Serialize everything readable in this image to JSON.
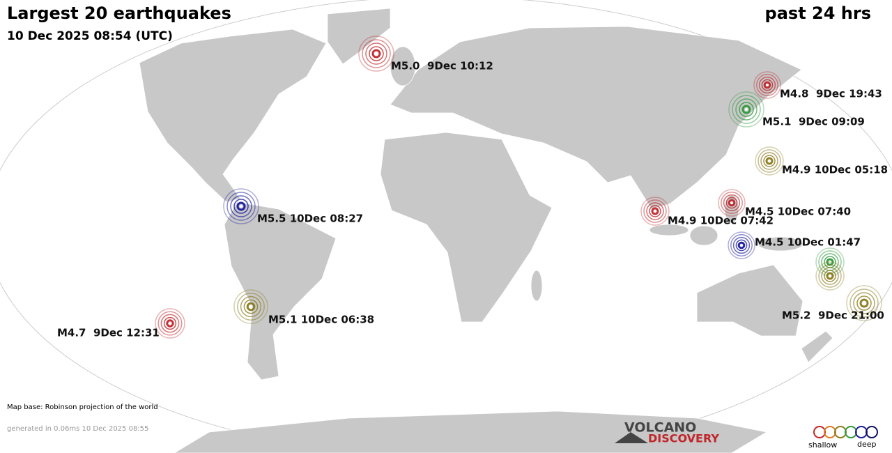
{
  "header": {
    "title": "Largest 20 earthquakes",
    "subtitle": "10 Dec 2025 08:54 (UTC)",
    "period": "past 24 hrs"
  },
  "quakes": [
    {
      "label": "M5.0  9Dec 10:12",
      "color": "#c0262b"
    },
    {
      "label": "M4.8  9Dec 19:43",
      "color": "#c0262b"
    },
    {
      "label": "M5.1  9Dec 09:09",
      "color": "#2e9a3a"
    },
    {
      "label": "M4.9 10Dec 05:18",
      "color": "#8a7a1c"
    },
    {
      "label": "M5.5 10Dec 08:27",
      "color": "#1a1aa0"
    },
    {
      "label": "M4.5 10Dec 07:40",
      "color": "#c0262b"
    },
    {
      "label": "M4.9 10Dec 07:42",
      "color": "#c0262b"
    },
    {
      "label": "M4.5 10Dec 01:47",
      "color": "#1a1aa0"
    },
    {
      "color": "#2e9a3a"
    },
    {
      "color": "#8a7a1c"
    },
    {
      "label": "M5.1 10Dec 06:38",
      "color": "#8a7a1c"
    },
    {
      "label": "M5.2  9Dec 21:00",
      "color": "#8a7a1c"
    },
    {
      "label": "M4.7  9Dec 12:31",
      "color": "#c0262b"
    }
  ],
  "footer": {
    "map_base": "Map base: Robinson projection of the world",
    "generated": "generated in 0.06ms 10 Dec 2025 08:55"
  },
  "logo": {
    "top": "VOLCANO",
    "bottom": "DISCOVERY"
  },
  "legend": {
    "shallow": "shallow",
    "deep": "deep"
  }
}
